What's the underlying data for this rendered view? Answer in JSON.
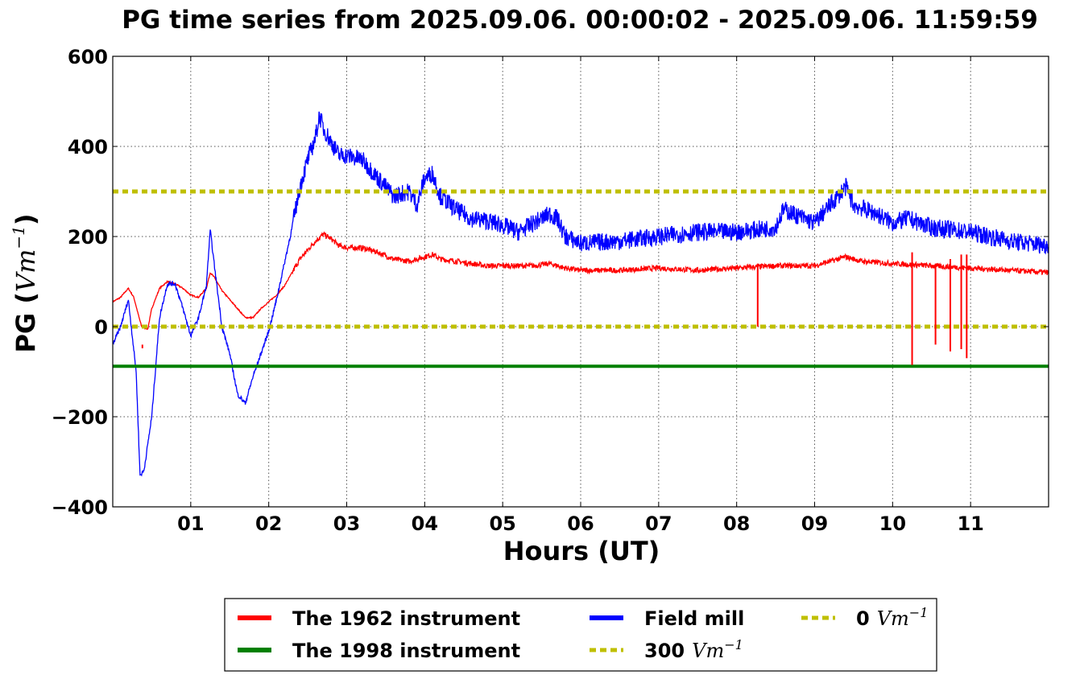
{
  "chart_data": {
    "type": "line",
    "title": "PG time series from 2025.09.06. 00:00:02 - 2025.09.06. 11:59:59",
    "xlabel": "Hours (UT)",
    "ylabel_prefix": "PG (",
    "ylabel_unit": "Vm",
    "ylabel_exp": "−1",
    "ylabel_suffix": ")",
    "xlim": [
      0,
      12
    ],
    "ylim": [
      -400,
      600
    ],
    "x_ticks": [
      {
        "value": 1,
        "label": "01"
      },
      {
        "value": 2,
        "label": "02"
      },
      {
        "value": 3,
        "label": "03"
      },
      {
        "value": 4,
        "label": "04"
      },
      {
        "value": 5,
        "label": "05"
      },
      {
        "value": 6,
        "label": "06"
      },
      {
        "value": 7,
        "label": "07"
      },
      {
        "value": 8,
        "label": "08"
      },
      {
        "value": 9,
        "label": "09"
      },
      {
        "value": 10,
        "label": "10"
      },
      {
        "value": 11,
        "label": "11"
      }
    ],
    "y_ticks": [
      {
        "value": -400,
        "label": "−400"
      },
      {
        "value": -200,
        "label": "−200"
      },
      {
        "value": 0,
        "label": "0"
      },
      {
        "value": 200,
        "label": "200"
      },
      {
        "value": 400,
        "label": "400"
      },
      {
        "value": 600,
        "label": "600"
      }
    ],
    "grid": true,
    "legend_position": "bottom-center",
    "series": [
      {
        "name": "The 1962 instrument",
        "color": "#ff0000",
        "style": "solid",
        "x": [
          0,
          0.1,
          0.2,
          0.27,
          0.33,
          0.37,
          0.45,
          0.5,
          0.6,
          0.7,
          0.8,
          0.9,
          1.0,
          1.1,
          1.2,
          1.25,
          1.3,
          1.4,
          1.5,
          1.6,
          1.7,
          1.8,
          1.9,
          2.0,
          2.1,
          2.2,
          2.3,
          2.4,
          2.5,
          2.6,
          2.7,
          2.8,
          2.9,
          3.0,
          3.2,
          3.4,
          3.6,
          3.8,
          4.0,
          4.1,
          4.2,
          4.4,
          4.6,
          4.8,
          5.0,
          5.2,
          5.4,
          5.6,
          5.8,
          6.0,
          6.5,
          7.0,
          7.5,
          8.0,
          8.5,
          9.0,
          9.4,
          9.6,
          10.0,
          10.5,
          11.0,
          11.5,
          12.0
        ],
        "values": [
          55,
          65,
          85,
          65,
          25,
          0,
          -5,
          40,
          85,
          100,
          95,
          85,
          70,
          65,
          85,
          120,
          110,
          80,
          60,
          40,
          20,
          20,
          40,
          55,
          70,
          90,
          120,
          150,
          170,
          190,
          205,
          195,
          180,
          175,
          175,
          165,
          150,
          145,
          155,
          160,
          150,
          145,
          140,
          135,
          135,
          135,
          135,
          140,
          130,
          125,
          125,
          130,
          125,
          130,
          135,
          135,
          155,
          145,
          140,
          135,
          130,
          125,
          120
        ]
      },
      {
        "name": "Field mill",
        "color": "#0000ff",
        "style": "solid",
        "x": [
          0,
          0.1,
          0.2,
          0.3,
          0.35,
          0.4,
          0.5,
          0.6,
          0.7,
          0.8,
          0.9,
          1.0,
          1.1,
          1.2,
          1.25,
          1.3,
          1.4,
          1.5,
          1.6,
          1.7,
          1.8,
          1.9,
          2.0,
          2.1,
          2.2,
          2.3,
          2.4,
          2.5,
          2.6,
          2.65,
          2.7,
          2.8,
          2.9,
          3.0,
          3.2,
          3.4,
          3.6,
          3.8,
          3.9,
          4.0,
          4.1,
          4.2,
          4.4,
          4.6,
          4.8,
          5.0,
          5.2,
          5.4,
          5.6,
          5.7,
          5.8,
          6.0,
          6.5,
          7.0,
          7.5,
          8.0,
          8.5,
          8.6,
          9.0,
          9.3,
          9.4,
          9.5,
          9.8,
          10.0,
          10.2,
          10.5,
          11.0,
          11.5,
          12.0
        ],
        "values": [
          -40,
          0,
          60,
          -100,
          -330,
          -320,
          -200,
          20,
          95,
          95,
          40,
          -20,
          20,
          90,
          215,
          140,
          0,
          -60,
          -150,
          -170,
          -110,
          -60,
          -10,
          60,
          140,
          220,
          310,
          370,
          420,
          470,
          440,
          410,
          380,
          380,
          370,
          330,
          290,
          300,
          270,
          330,
          340,
          290,
          260,
          240,
          235,
          225,
          210,
          230,
          250,
          240,
          200,
          185,
          190,
          200,
          210,
          210,
          220,
          260,
          230,
          290,
          310,
          270,
          250,
          230,
          240,
          220,
          210,
          190,
          180
        ]
      },
      {
        "name": "The 1998 instrument",
        "color": "#008000",
        "style": "solid",
        "x": [
          0,
          12
        ],
        "values": [
          -88,
          -88
        ]
      },
      {
        "name": "300",
        "color": "#bfbf00",
        "style": "dotted",
        "x": [
          0,
          12
        ],
        "values": [
          300,
          300
        ]
      },
      {
        "name": "0",
        "color": "#bfbf00",
        "style": "dotted",
        "x": [
          0,
          12
        ],
        "values": [
          0,
          0
        ]
      }
    ],
    "spikes_1962": [
      {
        "x": 8.27,
        "from": 140,
        "to": 0
      },
      {
        "x": 10.25,
        "from": 165,
        "to": -85
      },
      {
        "x": 10.55,
        "from": 140,
        "to": -40
      },
      {
        "x": 10.74,
        "from": 150,
        "to": -55
      },
      {
        "x": 10.88,
        "from": 160,
        "to": -50
      },
      {
        "x": 10.95,
        "from": 160,
        "to": -70
      },
      {
        "x": 0.38,
        "from": -40,
        "to": -48
      }
    ],
    "legend": [
      {
        "label": "The 1962 instrument",
        "unit": "",
        "exp": "",
        "color": "#ff0000",
        "style": "solid"
      },
      {
        "label": "The 1998 instrument",
        "unit": "",
        "exp": "",
        "color": "#008000",
        "style": "solid"
      },
      {
        "label": "Field mill",
        "unit": "",
        "exp": "",
        "color": "#0000ff",
        "style": "solid"
      },
      {
        "label": "300",
        "unit": "Vm",
        "exp": "−1",
        "color": "#bfbf00",
        "style": "dotted"
      },
      {
        "label": "0",
        "unit": "Vm",
        "exp": "−1",
        "color": "#bfbf00",
        "style": "dotted"
      }
    ]
  }
}
